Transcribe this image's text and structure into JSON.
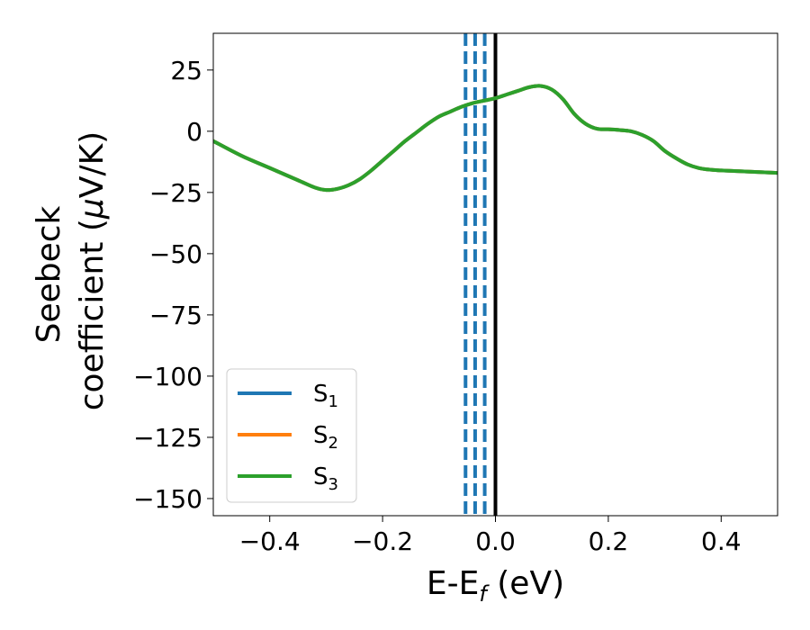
{
  "chart_data": {
    "type": "line",
    "xlabel": "E-E",
    "xlabel_sub": "f",
    "xlabel_unit": " (eV)",
    "ylabel_line1": "Seebeck",
    "ylabel_line2_pre": "coefficient  (",
    "ylabel_mu": "μ",
    "ylabel_line2_post": "V/K)",
    "xlim": [
      -0.5,
      0.5
    ],
    "ylim": [
      -157,
      40
    ],
    "xticks": [
      -0.4,
      -0.2,
      0.0,
      0.2,
      0.4
    ],
    "xtick_labels": [
      "−0.4",
      "−0.2",
      "0.0",
      "0.2",
      "0.4"
    ],
    "yticks": [
      25,
      0,
      -25,
      -50,
      -75,
      -100,
      -125,
      -150
    ],
    "ytick_labels": [
      "25",
      "0",
      "−25",
      "−50",
      "−75",
      "−100",
      "−125",
      "−150"
    ],
    "grid": false,
    "legend_position": "lower-left",
    "series": [
      {
        "name": "S",
        "sub": "1",
        "color": "#1f77b4",
        "x": [
          -0.5,
          -0.45,
          -0.4,
          -0.35,
          -0.32,
          -0.3,
          -0.28,
          -0.26,
          -0.24,
          -0.22,
          -0.2,
          -0.18,
          -0.16,
          -0.14,
          -0.12,
          -0.1,
          -0.08,
          -0.06,
          -0.04,
          -0.02,
          0.0,
          0.02,
          0.04,
          0.06,
          0.08,
          0.1,
          0.12,
          0.14,
          0.16,
          0.18,
          0.2,
          0.22,
          0.24,
          0.26,
          0.28,
          0.3,
          0.32,
          0.34,
          0.36,
          0.38,
          0.4,
          0.45,
          0.5
        ],
        "y": [
          -4,
          -10,
          -15,
          -20,
          -23,
          -24,
          -23.5,
          -22,
          -19.5,
          -16,
          -12,
          -8,
          -4,
          -0.5,
          3,
          6,
          8,
          10,
          11.5,
          12.5,
          13.5,
          15,
          16.5,
          18,
          18.5,
          17,
          13,
          7,
          3,
          1,
          0.8,
          0.5,
          0,
          -1.5,
          -4,
          -8,
          -11,
          -13.5,
          -15,
          -15.7,
          -16,
          -16.5,
          -17
        ]
      },
      {
        "name": "S",
        "sub": "2",
        "color": "#ff7f0e",
        "x": [
          -0.5,
          -0.45,
          -0.4,
          -0.35,
          -0.32,
          -0.3,
          -0.28,
          -0.26,
          -0.24,
          -0.22,
          -0.2,
          -0.18,
          -0.16,
          -0.14,
          -0.12,
          -0.1,
          -0.08,
          -0.06,
          -0.04,
          -0.02,
          0.0,
          0.02,
          0.04,
          0.06,
          0.08,
          0.1,
          0.12,
          0.14,
          0.16,
          0.18,
          0.2,
          0.22,
          0.24,
          0.26,
          0.28,
          0.3,
          0.32,
          0.34,
          0.36,
          0.38,
          0.4,
          0.45,
          0.5
        ],
        "y": [
          -4,
          -10,
          -15,
          -20,
          -23,
          -24,
          -23.5,
          -22,
          -19.5,
          -16,
          -12,
          -8,
          -4,
          -0.5,
          3,
          6,
          8,
          10,
          11.5,
          12.5,
          13.5,
          15,
          16.5,
          18,
          18.5,
          17,
          13,
          7,
          3,
          1,
          0.8,
          0.5,
          0,
          -1.5,
          -4,
          -8,
          -11,
          -13.5,
          -15,
          -15.7,
          -16,
          -16.5,
          -17
        ]
      },
      {
        "name": "S",
        "sub": "3",
        "color": "#2ca02c",
        "x": [
          -0.5,
          -0.45,
          -0.4,
          -0.35,
          -0.32,
          -0.3,
          -0.28,
          -0.26,
          -0.24,
          -0.22,
          -0.2,
          -0.18,
          -0.16,
          -0.14,
          -0.12,
          -0.1,
          -0.08,
          -0.06,
          -0.04,
          -0.02,
          0.0,
          0.02,
          0.04,
          0.06,
          0.08,
          0.1,
          0.12,
          0.14,
          0.16,
          0.18,
          0.2,
          0.22,
          0.24,
          0.26,
          0.28,
          0.3,
          0.32,
          0.34,
          0.36,
          0.38,
          0.4,
          0.45,
          0.5
        ],
        "y": [
          -4,
          -10,
          -15,
          -20,
          -23,
          -24,
          -23.5,
          -22,
          -19.5,
          -16,
          -12,
          -8,
          -4,
          -0.5,
          3,
          6,
          8,
          10,
          11.5,
          12.5,
          13.5,
          15,
          16.5,
          18,
          18.5,
          17,
          13,
          7,
          3,
          1,
          0.8,
          0.5,
          0,
          -1.5,
          -4,
          -8,
          -11,
          -13.5,
          -15,
          -15.7,
          -16,
          -16.5,
          -17
        ]
      }
    ],
    "vlines": [
      {
        "x": 0.0,
        "color": "#000000",
        "style": "solid"
      },
      {
        "x": -0.053,
        "color": "#1f77b4",
        "style": "dashed"
      },
      {
        "x": -0.036,
        "color": "#1f77b4",
        "style": "dashed"
      },
      {
        "x": -0.019,
        "color": "#1f77b4",
        "style": "dashed"
      }
    ]
  }
}
